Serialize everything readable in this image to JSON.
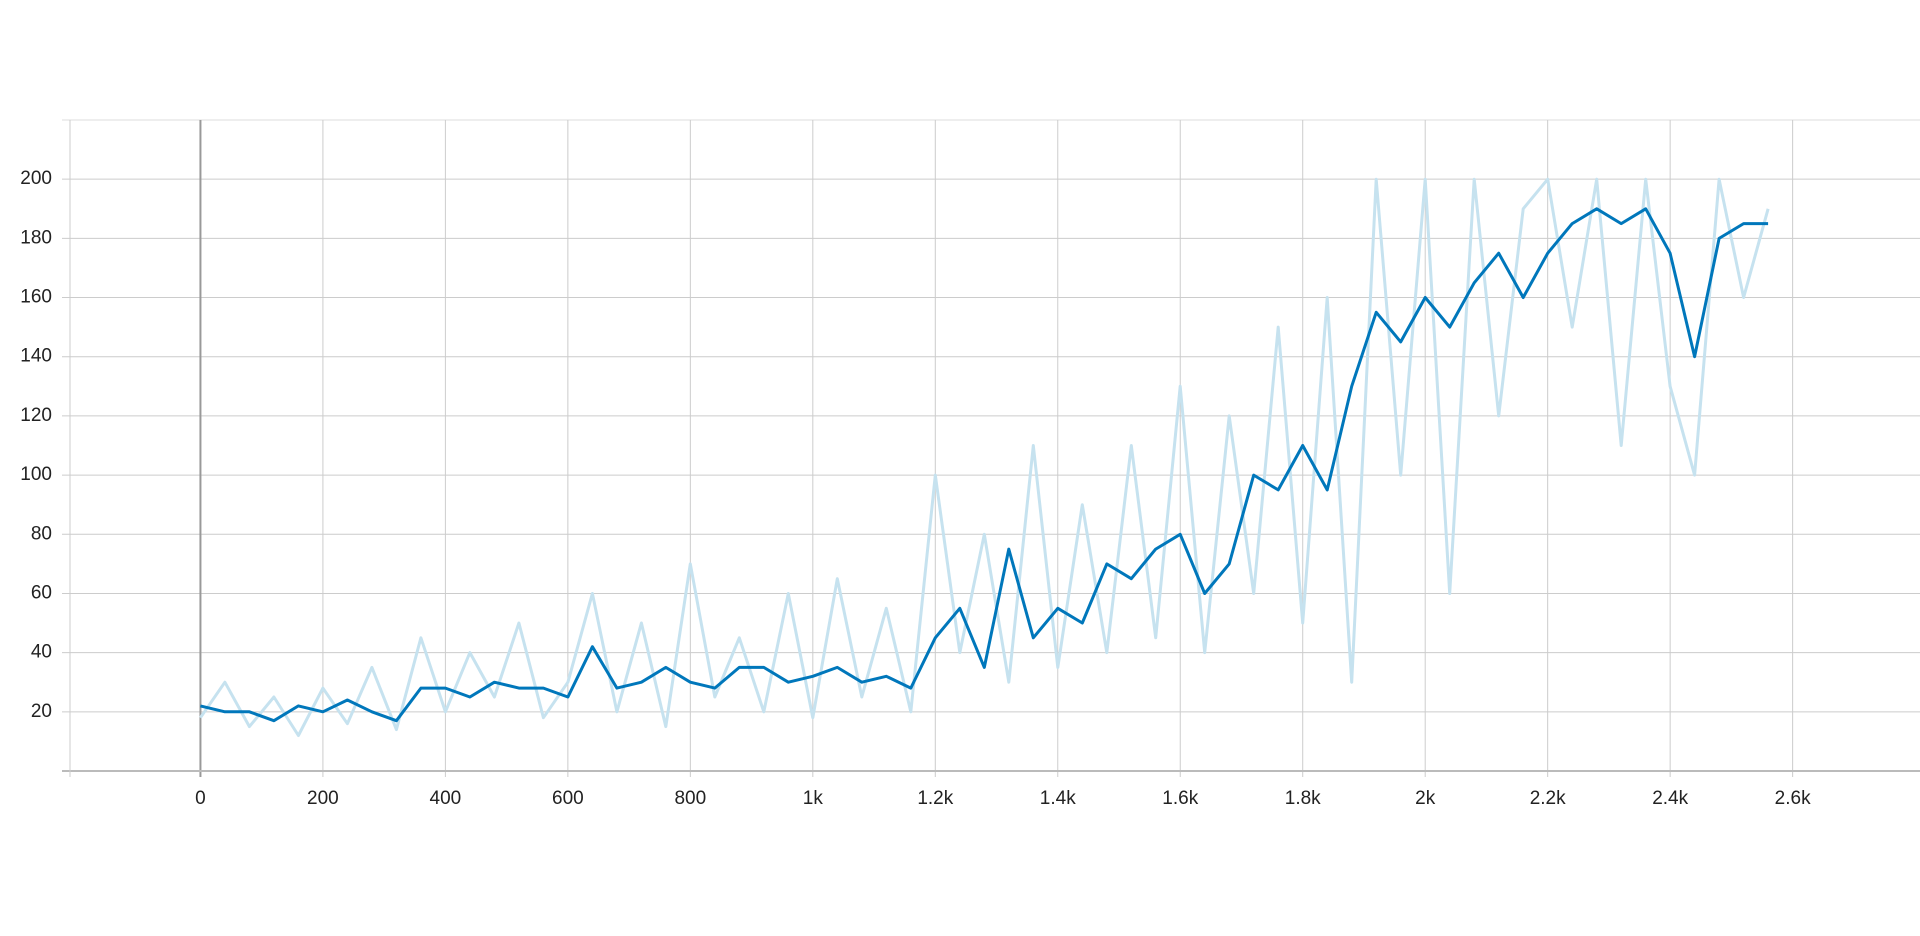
{
  "chart_data": {
    "type": "line",
    "x": [
      0,
      40,
      80,
      120,
      160,
      200,
      240,
      280,
      320,
      360,
      400,
      440,
      480,
      520,
      560,
      600,
      640,
      680,
      720,
      760,
      800,
      840,
      880,
      920,
      960,
      1000,
      1040,
      1080,
      1120,
      1160,
      1200,
      1240,
      1280,
      1320,
      1360,
      1400,
      1440,
      1480,
      1520,
      1560,
      1600,
      1640,
      1680,
      1720,
      1760,
      1800,
      1840,
      1880,
      1920,
      1960,
      2000,
      2040,
      2080,
      2120,
      2160,
      2200,
      2240,
      2280,
      2320,
      2360,
      2400,
      2440,
      2480,
      2520,
      2560
    ],
    "series": [
      {
        "color": "#c6e2ef",
        "values": [
          18,
          30,
          15,
          25,
          12,
          28,
          16,
          35,
          14,
          45,
          20,
          40,
          25,
          50,
          18,
          30,
          60,
          20,
          50,
          15,
          70,
          25,
          45,
          20,
          60,
          18,
          65,
          25,
          55,
          20,
          100,
          40,
          80,
          30,
          110,
          35,
          90,
          40,
          110,
          45,
          130,
          40,
          120,
          60,
          150,
          50,
          160,
          30,
          200,
          100,
          200,
          60,
          200,
          120,
          190,
          200,
          150,
          200,
          110,
          200,
          130,
          100,
          200,
          160,
          190
        ]
      },
      {
        "color": "#0077bb",
        "values": [
          22,
          20,
          20,
          17,
          22,
          20,
          24,
          20,
          17,
          28,
          28,
          25,
          30,
          28,
          28,
          25,
          42,
          28,
          30,
          35,
          30,
          28,
          35,
          35,
          30,
          32,
          35,
          30,
          32,
          28,
          45,
          55,
          35,
          75,
          45,
          55,
          50,
          70,
          65,
          75,
          80,
          60,
          70,
          100,
          95,
          110,
          95,
          130,
          155,
          145,
          160,
          150,
          165,
          175,
          160,
          175,
          185,
          190,
          185,
          190,
          175,
          140,
          180,
          185,
          185
        ]
      }
    ],
    "xlim": [
      -213,
      2808
    ],
    "ylim": [
      0,
      220
    ],
    "xticks": [
      0,
      200,
      400,
      600,
      800,
      {
        "value": 1000,
        "label": "1k"
      },
      {
        "value": 1200,
        "label": "1.2k"
      },
      {
        "value": 1400,
        "label": "1.4k"
      },
      {
        "value": 1600,
        "label": "1.6k"
      },
      {
        "value": 1800,
        "label": "1.8k"
      },
      {
        "value": 2000,
        "label": "2k"
      },
      {
        "value": 2200,
        "label": "2.2k"
      },
      {
        "value": 2400,
        "label": "2.4k"
      },
      {
        "value": 2600,
        "label": "2.6k"
      }
    ],
    "yticks": [
      20,
      40,
      60,
      80,
      100,
      120,
      140,
      160,
      180,
      200
    ],
    "grid": true
  }
}
